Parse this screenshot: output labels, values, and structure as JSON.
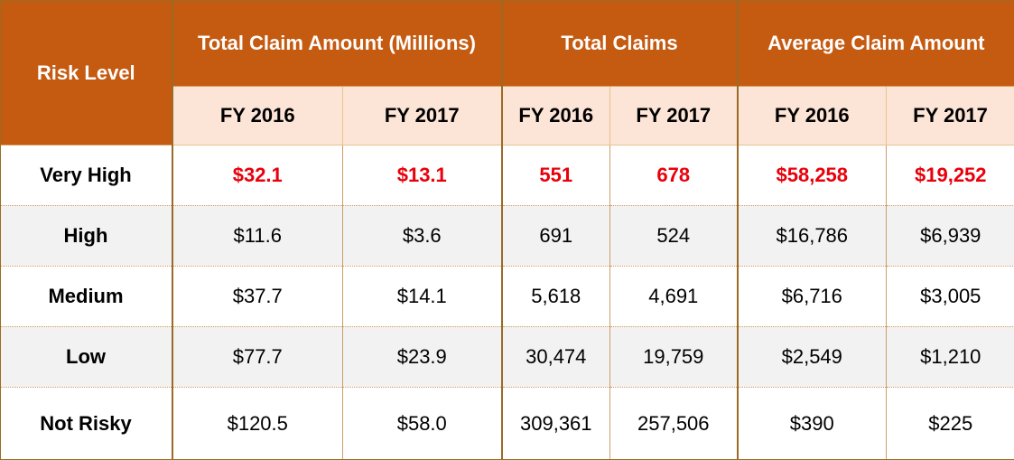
{
  "chart_data": {
    "type": "table",
    "row_header": "Risk Level",
    "column_groups": [
      {
        "label": "Total Claim Amount (Millions)",
        "years": [
          "FY 2016",
          "FY 2017"
        ]
      },
      {
        "label": "Total Claims",
        "years": [
          "FY 2016",
          "FY 2017"
        ]
      },
      {
        "label": "Average Claim Amount",
        "years": [
          "FY 2016",
          "FY 2017"
        ]
      }
    ],
    "rows": [
      {
        "label": "Very High",
        "values": [
          "$32.1",
          "$13.1",
          "551",
          "678",
          "$58,258",
          "$19,252"
        ],
        "highlight": true
      },
      {
        "label": "High",
        "values": [
          "$11.6",
          "$3.6",
          "691",
          "524",
          "$16,786",
          "$6,939"
        ],
        "highlight": false
      },
      {
        "label": "Medium",
        "values": [
          "$37.7",
          "$14.1",
          "5,618",
          "4,691",
          "$6,716",
          "$3,005"
        ],
        "highlight": false
      },
      {
        "label": "Low",
        "values": [
          "$77.7",
          "$23.9",
          "30,474",
          "19,759",
          "$2,549",
          "$1,210"
        ],
        "highlight": false
      },
      {
        "label": "Not Risky",
        "values": [
          "$120.5",
          "$58.0",
          "309,361",
          "257,506",
          "$390",
          "$225"
        ],
        "highlight": false
      }
    ]
  },
  "colors": {
    "header_bg": "#c55a11",
    "subheader_bg": "#fce4d6",
    "highlight_text": "#e8000b",
    "alt_row_bg": "#f2f2f2"
  }
}
